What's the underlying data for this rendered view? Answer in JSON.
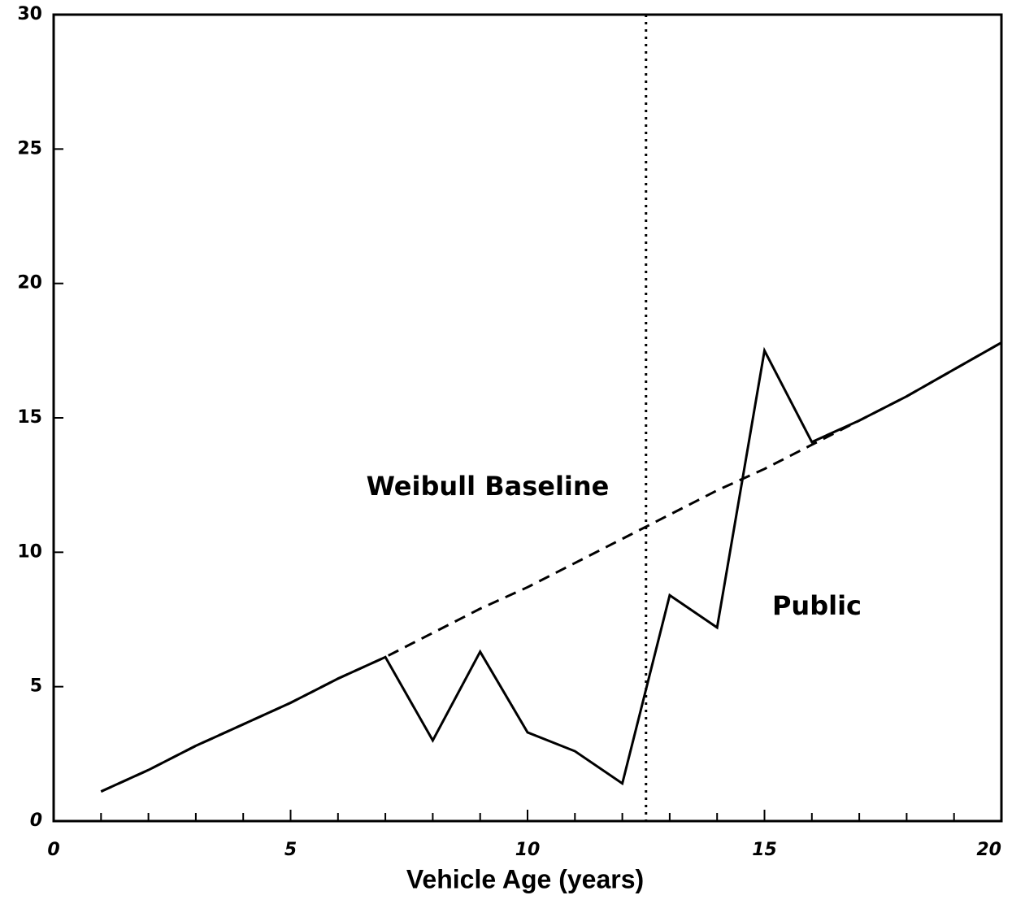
{
  "chart_data": {
    "type": "line",
    "x_label": "Vehicle Age (years)",
    "x": [
      1,
      2,
      3,
      4,
      5,
      6,
      7,
      8,
      9,
      10,
      11,
      12,
      13,
      14,
      15,
      16,
      17,
      18,
      19,
      20
    ],
    "series": [
      {
        "name": "Weibull Baseline",
        "color": "#000000",
        "dashed": true,
        "values": [
          1.1,
          1.9,
          2.8,
          3.6,
          4.4,
          5.3,
          6.1,
          7.0,
          7.9,
          8.7,
          9.6,
          10.5,
          11.4,
          12.3,
          13.1,
          14.0,
          14.9,
          15.8,
          16.8,
          17.8
        ]
      },
      {
        "name": "Public",
        "color": "#000000",
        "dashed": false,
        "values": [
          1.1,
          1.9,
          2.8,
          3.6,
          4.4,
          5.3,
          6.1,
          3.0,
          6.3,
          3.3,
          2.6,
          1.4,
          8.4,
          7.2,
          17.5,
          14.1,
          14.9,
          15.8,
          16.8,
          17.8
        ]
      }
    ],
    "vline": 12.5,
    "xlim": [
      0,
      20
    ],
    "xticks": [
      0,
      5,
      10,
      15,
      20
    ],
    "xminorticks": [
      1,
      2,
      3,
      4,
      6,
      7,
      8,
      9,
      11,
      12,
      13,
      14,
      16,
      17,
      18,
      19
    ],
    "ylim": [
      0,
      30
    ],
    "yticks": [
      0,
      5,
      10,
      15,
      20,
      25,
      30
    ],
    "grid": false
  }
}
